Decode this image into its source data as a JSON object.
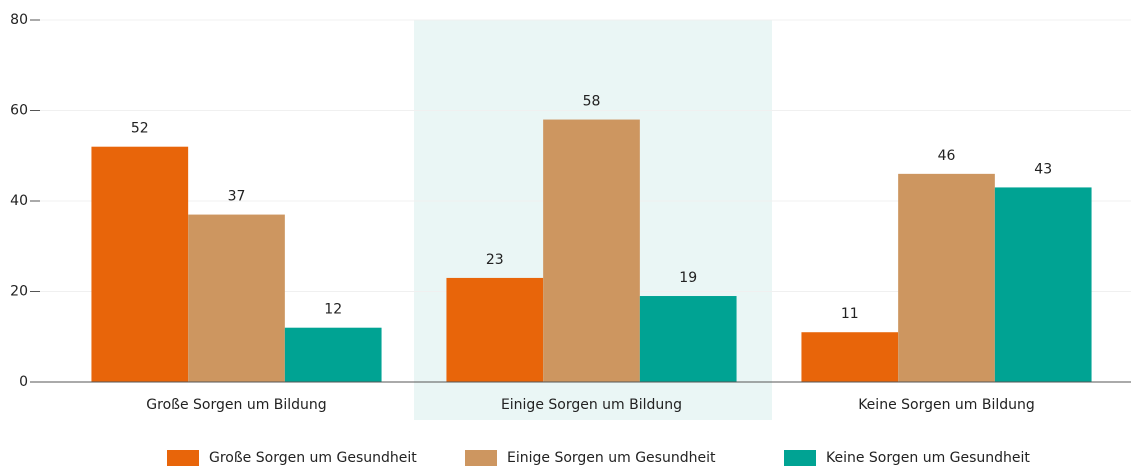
{
  "chart_data": {
    "type": "bar",
    "categories": [
      "Große Sorgen um Bildung",
      "Einige Sorgen um Bildung",
      "Keine Sorgen um Bildung"
    ],
    "series": [
      {
        "name": "Große Sorgen um Gesundheit",
        "color": "#e8650a",
        "values": [
          52,
          23,
          11
        ]
      },
      {
        "name": "Einige Sorgen um Gesundheit",
        "color": "#cd9660",
        "values": [
          37,
          58,
          46
        ]
      },
      {
        "name": "Keine Sorgen um Gesundheit",
        "color": "#00a393",
        "values": [
          12,
          19,
          43
        ]
      }
    ],
    "ylim": [
      0,
      80
    ],
    "yticks": [
      0,
      20,
      40,
      60,
      80
    ],
    "grid": true,
    "highlight_category": 1,
    "highlight_color": "#eaf6f5",
    "legend": "bottom"
  }
}
